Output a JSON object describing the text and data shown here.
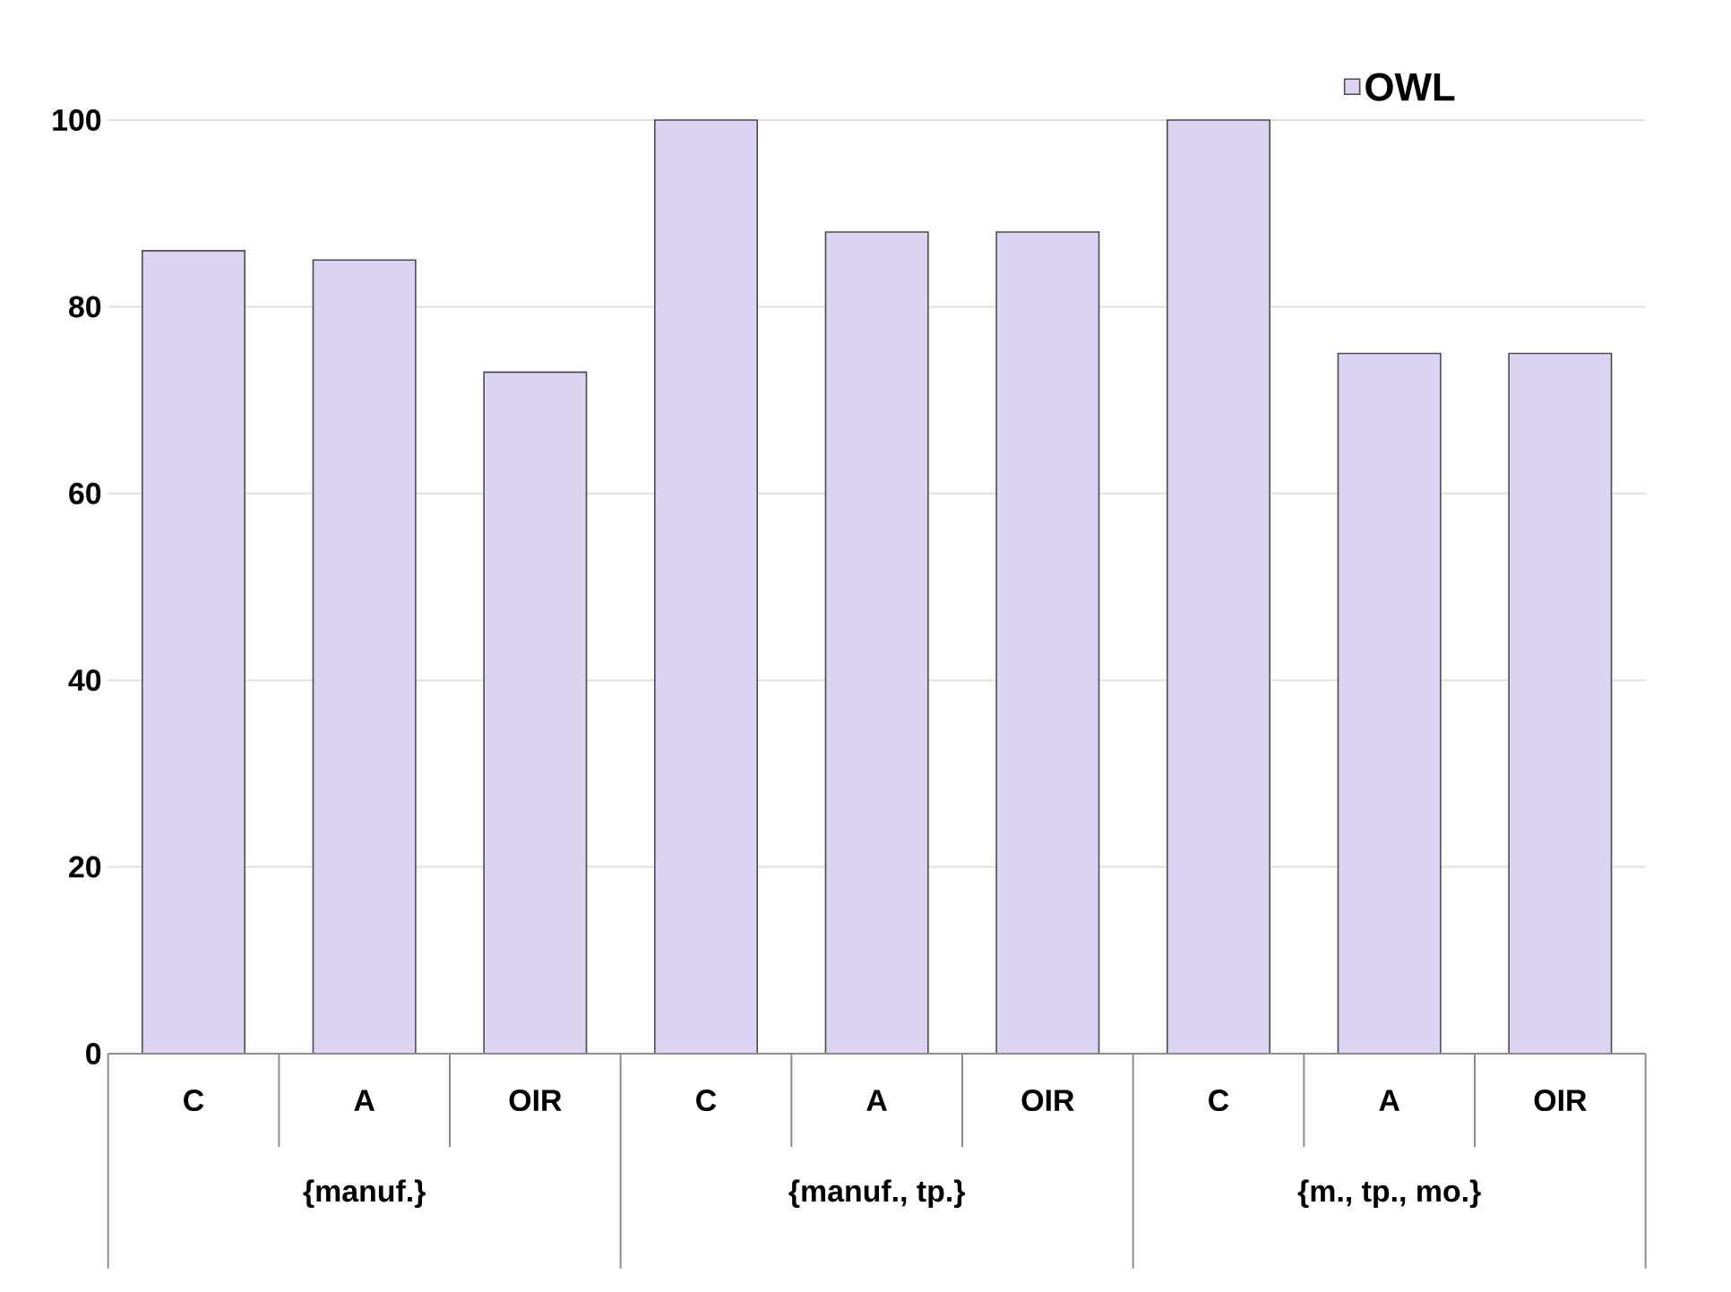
{
  "chart_data": {
    "type": "bar",
    "categories": [
      "C",
      "A",
      "OIR",
      "C",
      "A",
      "OIR",
      "C",
      "A",
      "OIR"
    ],
    "series": [
      {
        "name": "OWL",
        "color": "#ddd3f2",
        "values": [
          86,
          85,
          73,
          100,
          88,
          88,
          100,
          75,
          75
        ]
      }
    ],
    "ylim": [
      0,
      100
    ],
    "yticks": [
      0,
      20,
      40,
      60,
      80,
      100
    ],
    "grid": "y",
    "legend": "top right",
    "annotations": [
      "{manuf.}",
      "{manuf., tp.}",
      "{m., tp., mo.}"
    ]
  }
}
